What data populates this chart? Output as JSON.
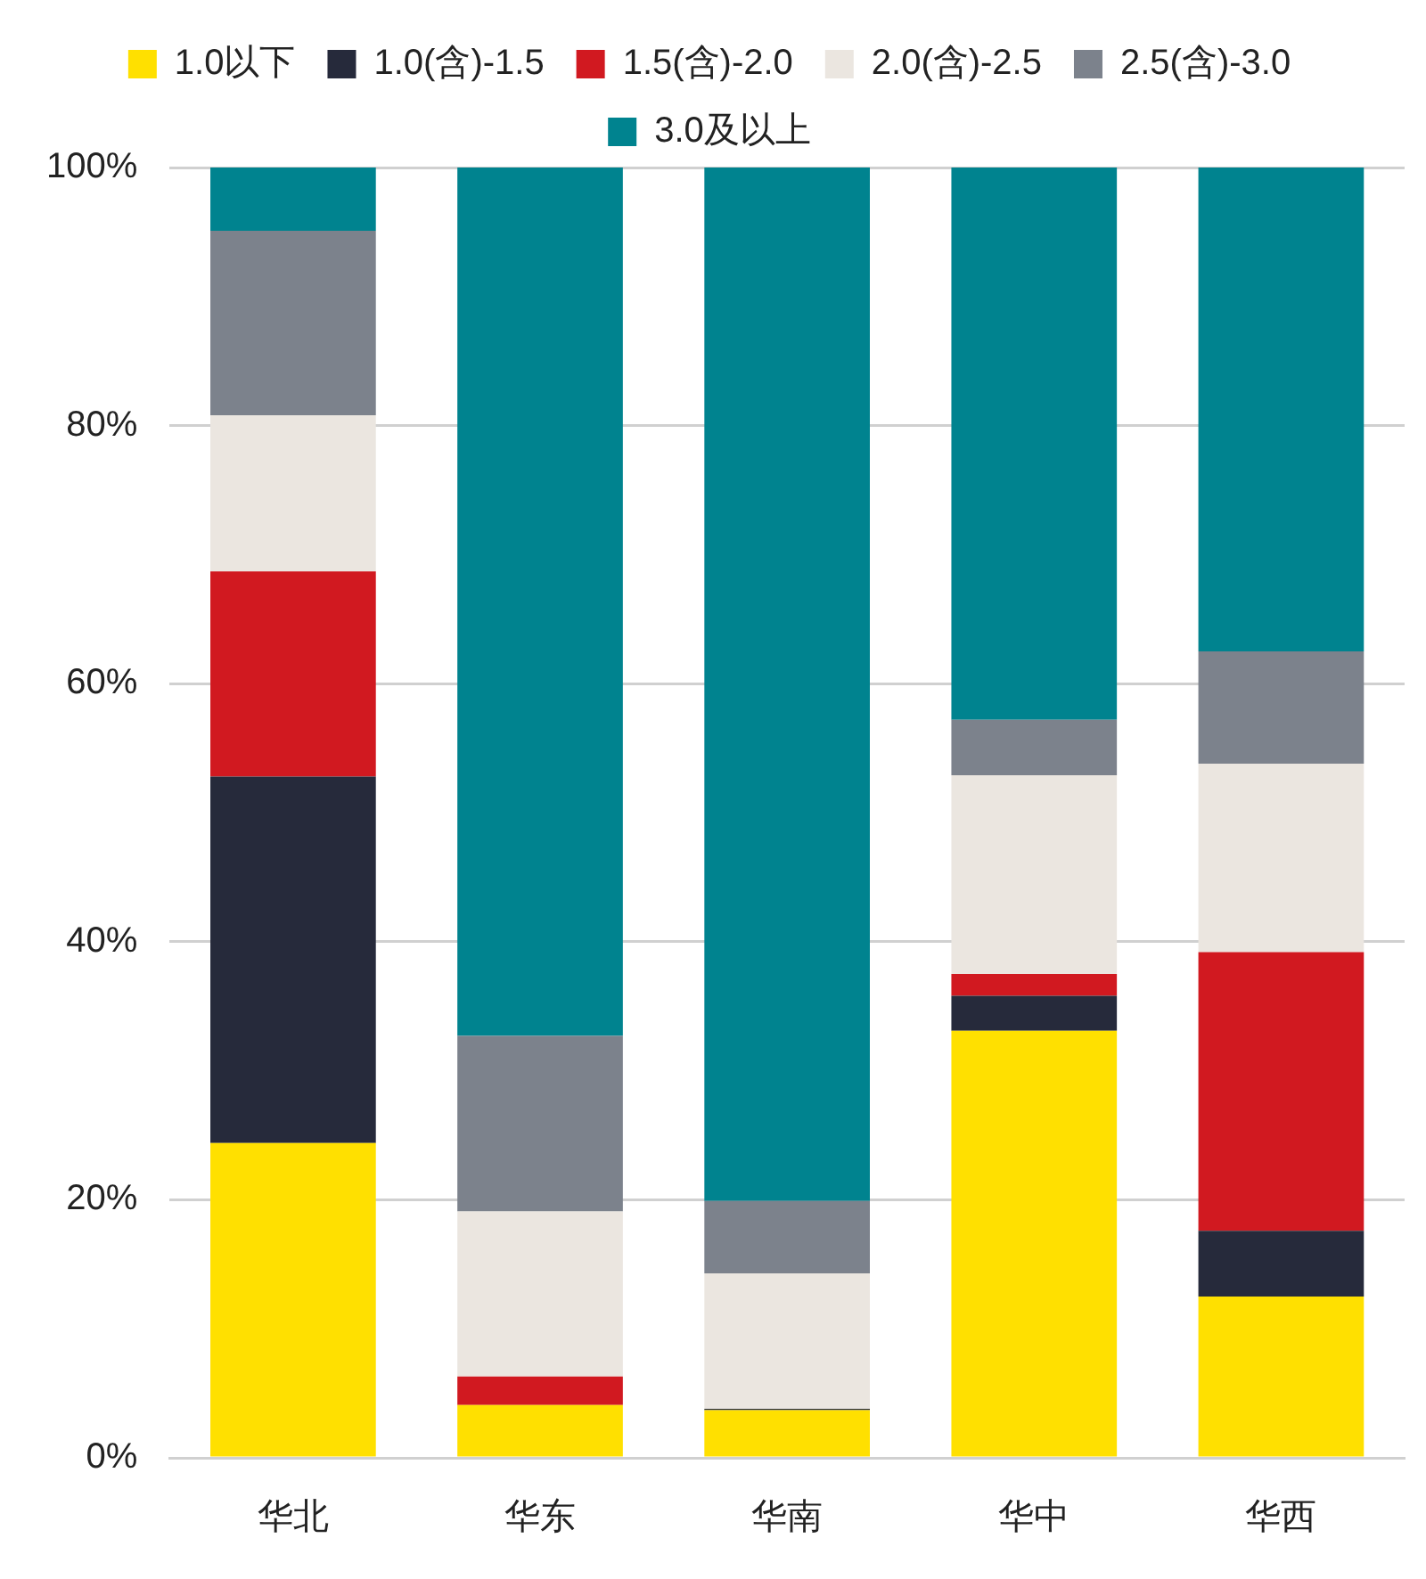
{
  "chart_data": {
    "type": "bar",
    "stacked": true,
    "categories": [
      "华北",
      "华东",
      "华南",
      "华中",
      "华西"
    ],
    "series": [
      {
        "name": "1.0以下",
        "color": "#ffe000",
        "values": [
          24.4,
          4.1,
          3.7,
          33.1,
          12.5
        ]
      },
      {
        "name": "1.0(含)-1.5",
        "color": "#262a3b",
        "values": [
          28.4,
          0,
          0.1,
          2.7,
          5.1
        ]
      },
      {
        "name": "1.5(含)-2.0",
        "color": "#d11920",
        "values": [
          15.9,
          2.2,
          0,
          1.7,
          21.6
        ]
      },
      {
        "name": "2.0(含)-2.5",
        "color": "#ebe6e0",
        "values": [
          12.1,
          12.8,
          10.5,
          15.4,
          14.6
        ]
      },
      {
        "name": "2.5(含)-3.0",
        "color": "#7c828c",
        "values": [
          14.3,
          13.6,
          5.6,
          4.3,
          8.7
        ]
      },
      {
        "name": "3.0及以上",
        "color": "#00838f",
        "values": [
          4.9,
          67.3,
          80.1,
          42.8,
          37.5
        ]
      }
    ],
    "ylim": [
      0,
      100
    ],
    "yticks": [
      {
        "value": 0,
        "label": "0%"
      },
      {
        "value": 20,
        "label": "20%"
      },
      {
        "value": 40,
        "label": "40%"
      },
      {
        "value": 60,
        "label": "60%"
      },
      {
        "value": 80,
        "label": "80%"
      },
      {
        "value": 100,
        "label": "100%"
      }
    ],
    "grid": "y",
    "legend": "top"
  }
}
